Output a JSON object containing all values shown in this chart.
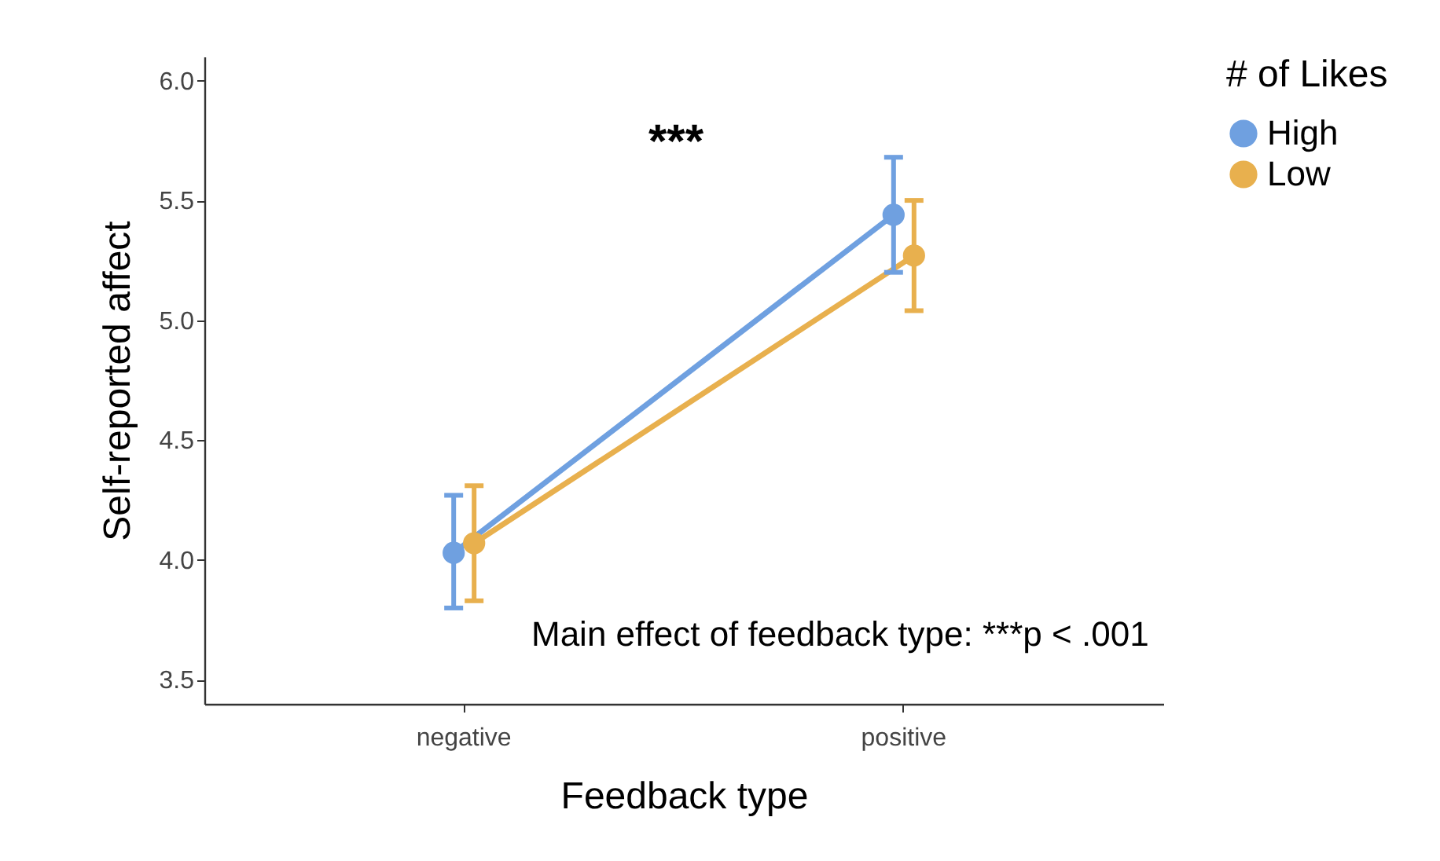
{
  "chart_data": {
    "type": "line",
    "xlabel": "Feedback type",
    "ylabel": "Self-reported affect",
    "legend_title": "# of Likes",
    "categories": [
      "negative",
      "positive"
    ],
    "series": [
      {
        "name": "High",
        "color": "#6fa0e0",
        "values": [
          4.03,
          5.44
        ],
        "errors": [
          [
            3.8,
            4.27
          ],
          [
            5.2,
            5.68
          ]
        ]
      },
      {
        "name": "Low",
        "color": "#e8b04e",
        "values": [
          4.07,
          5.27
        ],
        "errors": [
          [
            3.83,
            4.31
          ],
          [
            5.04,
            5.5
          ]
        ]
      }
    ],
    "ylim": [
      3.4,
      6.1
    ],
    "yticks": [
      3.5,
      {
        "value": 4,
        "label": "4.0"
      },
      4.5,
      {
        "value": 5,
        "label": "5.0"
      },
      5.5,
      {
        "value": 6,
        "label": "6.0"
      }
    ],
    "annotations": [
      "***",
      "Main effect of feedback type: ***p < .001"
    ],
    "grid": false,
    "legend": "right",
    "marker": "circle"
  }
}
